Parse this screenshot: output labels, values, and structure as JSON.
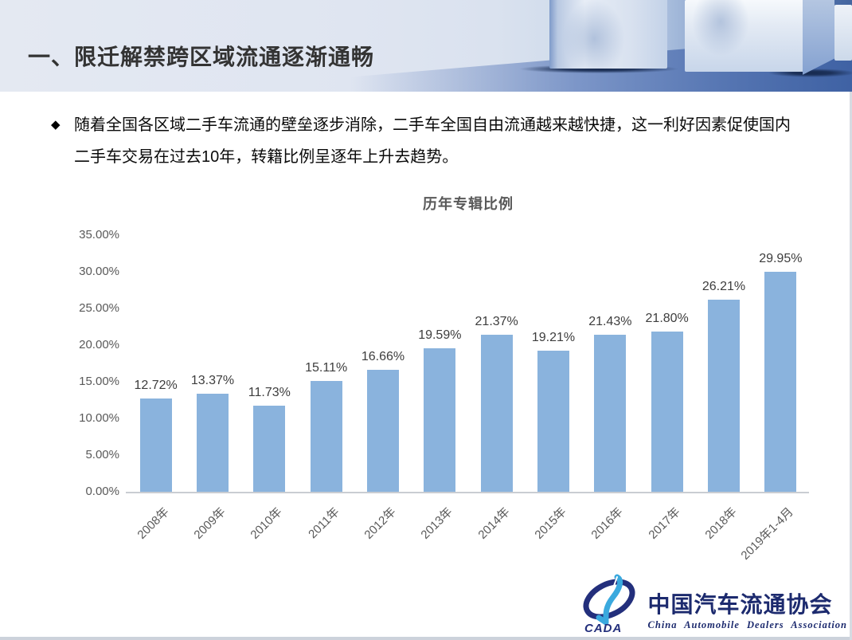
{
  "header": {
    "title": "一、限迁解禁跨区域流通逐渐通畅"
  },
  "intro": {
    "bullet_icon": "◆",
    "line1": "随着全国各区域二手车流通的壁垒逐步消除，二手车全国自由流通越来越快捷，这一利好因素促使国内",
    "line2": "二手车交易在过去10年，转籍比例呈逐年上升去趋势。"
  },
  "chart_data": {
    "type": "bar",
    "title": "历年专辑比例",
    "categories": [
      "2008年",
      "2009年",
      "2010年",
      "2011年",
      "2012年",
      "2013年",
      "2014年",
      "2015年",
      "2016年",
      "2017年",
      "2018年",
      "2019年1-4月"
    ],
    "values": [
      12.72,
      13.37,
      11.73,
      15.11,
      16.66,
      19.59,
      21.37,
      19.21,
      21.43,
      21.8,
      26.21,
      29.95
    ],
    "value_labels": [
      "12.72%",
      "13.37%",
      "11.73%",
      "15.11%",
      "16.66%",
      "19.59%",
      "21.37%",
      "19.21%",
      "21.43%",
      "21.80%",
      "26.21%",
      "29.95%"
    ],
    "y_ticks": [
      {
        "value": 35,
        "label": "35.00%"
      },
      {
        "value": 30,
        "label": "30.00%"
      },
      {
        "value": 25,
        "label": "25.00%"
      },
      {
        "value": 20,
        "label": "20.00%"
      },
      {
        "value": 15,
        "label": "15.00%"
      },
      {
        "value": 10,
        "label": "10.00%"
      },
      {
        "value": 5,
        "label": "5.00%"
      },
      {
        "value": 0,
        "label": "0.00%"
      }
    ],
    "ylim": [
      0,
      35
    ],
    "xlabel": "",
    "ylabel": "",
    "grid": false,
    "legend": "none",
    "bar_color": "#8ab3dd",
    "axis_line_color": "#c9cdd2",
    "label_color": "#3d3d3d",
    "tick_color": "#595959"
  },
  "footer_logo": {
    "acronym": "CADA",
    "name_cn": "中国汽车流通协会",
    "name_en": "China Automobile Dealers Association"
  }
}
